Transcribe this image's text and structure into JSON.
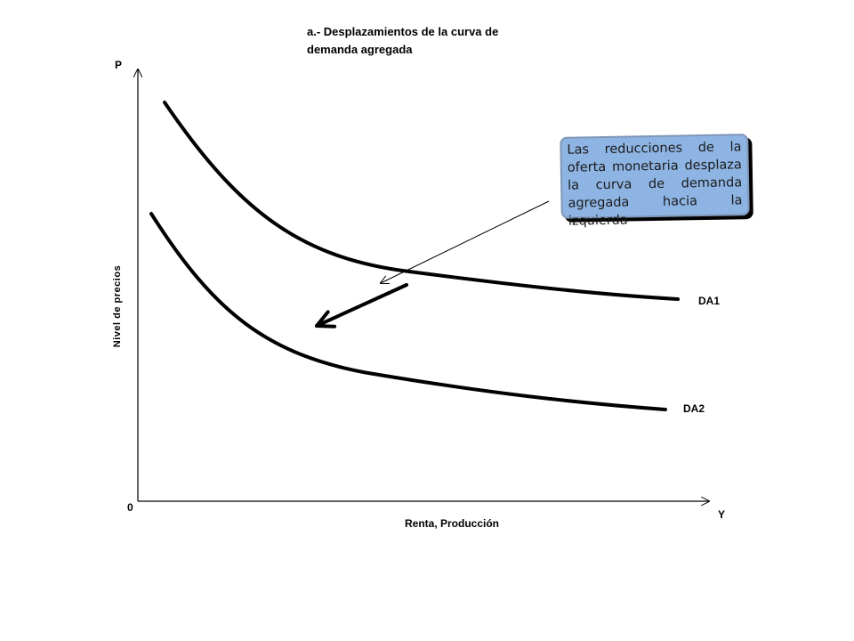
{
  "title": "a.- Desplazamientos de la curva de demanda agregada",
  "axes": {
    "y_label": "Nivel de precios",
    "y_symbol": "P",
    "x_label": "Renta, Producción",
    "x_symbol": "Y",
    "origin": "0"
  },
  "curves": [
    {
      "name": "DA1"
    },
    {
      "name": "DA2"
    }
  ],
  "callout": {
    "text": "Las reducciones de la oferta monetaria desplaza la curva de demanda agregada hacia la izquierda",
    "background": "#8eb4e3"
  },
  "colors": {
    "lines": "#000000"
  }
}
